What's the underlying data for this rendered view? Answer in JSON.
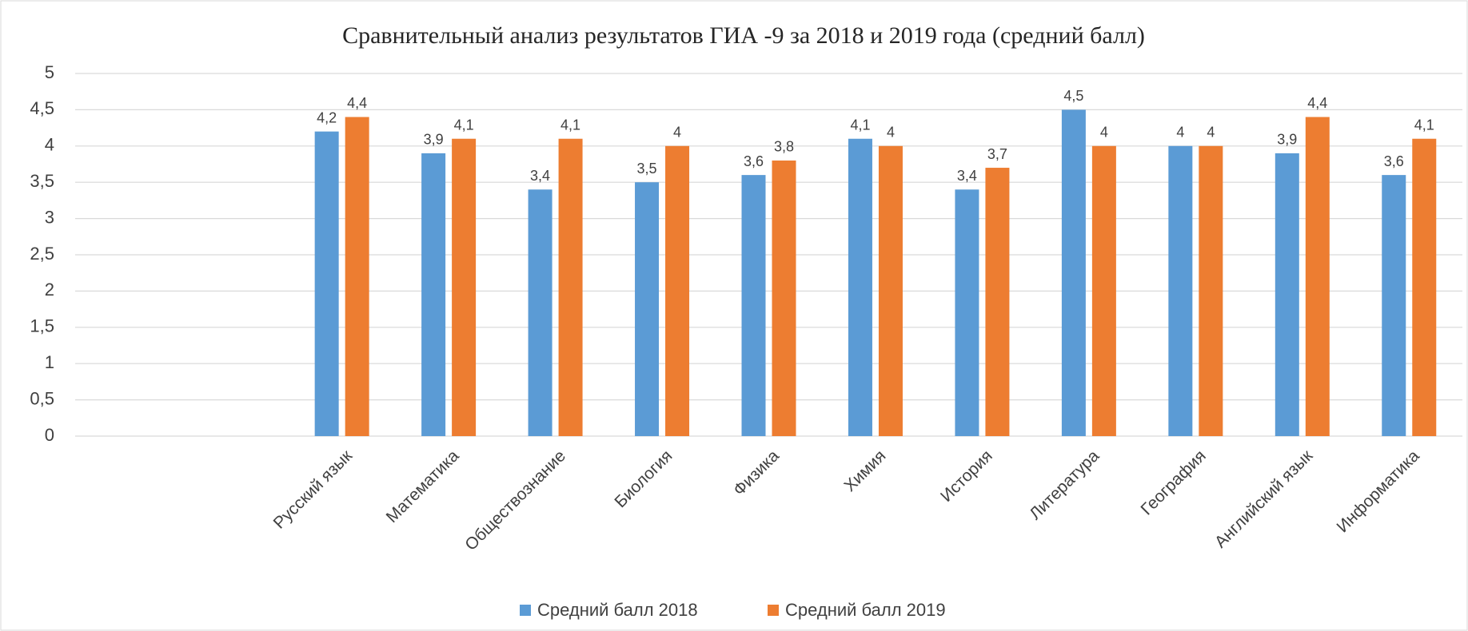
{
  "chart_data": {
    "type": "bar",
    "title": "Сравнительный анализ результатов ГИА -9 за 2018 и 2019 года (средний балл)",
    "categories": [
      null,
      null,
      "Русский язык",
      "Математика",
      "Обществознание",
      "Биология",
      "Физика",
      "Химия",
      "История",
      "Литература",
      "География",
      "Английский язык",
      "Информатика"
    ],
    "series": [
      {
        "name": "Средний балл 2018",
        "color": "#5b9bd5",
        "values": [
          null,
          null,
          4.2,
          3.9,
          3.4,
          3.5,
          3.6,
          4.1,
          3.4,
          4.5,
          4,
          3.9,
          3.6
        ],
        "value_labels": [
          null,
          null,
          "4,2",
          "3,9",
          "3,4",
          "3,5",
          "3,6",
          "4,1",
          "3,4",
          "4,5",
          "4",
          "3,9",
          "3,6"
        ]
      },
      {
        "name": "Средний балл 2019",
        "color": "#ed7d31",
        "values": [
          null,
          null,
          4.4,
          4.1,
          4.1,
          4,
          3.8,
          4,
          3.7,
          4,
          4,
          4.4,
          4.1
        ],
        "value_labels": [
          null,
          null,
          "4,4",
          "4,1",
          "4,1",
          "4",
          "3,8",
          "4",
          "3,7",
          "4",
          "4",
          "4,4",
          "4,1"
        ]
      }
    ],
    "ylim": [
      0,
      5
    ],
    "yticks": [
      0,
      {
        "value": 0.5,
        "label": "0,5"
      },
      1,
      {
        "value": 1.5,
        "label": "1,5"
      },
      2,
      {
        "value": 2.5,
        "label": "2,5"
      },
      3,
      {
        "value": 3.5,
        "label": "3,5"
      },
      4,
      {
        "value": 4.5,
        "label": "4,5"
      },
      5
    ],
    "grid": true,
    "legend": "bottom"
  }
}
